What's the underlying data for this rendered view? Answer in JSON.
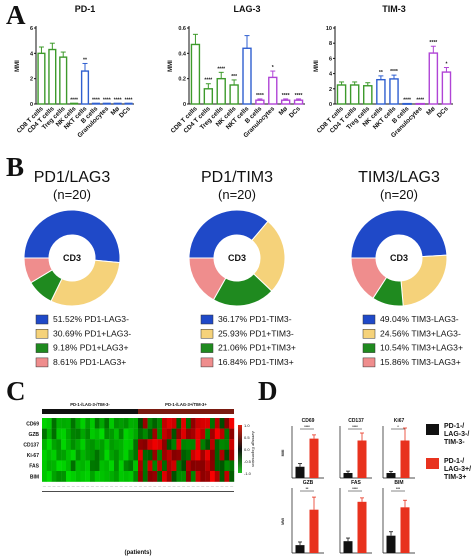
{
  "panel_labels": {
    "a": "A",
    "b": "B",
    "c": "C",
    "d": "D"
  },
  "colors": {
    "green": "#3d9a2b",
    "blue": "#2f5fd0",
    "purple": "#b044d6",
    "pie_blue": "#1f49c8",
    "pie_yellow": "#f5d27a",
    "pie_green": "#1f8a1f",
    "pie_pink": "#ef8d8d",
    "bar_black": "#111111",
    "bar_red": "#e8321e"
  },
  "chart_data": [
    {
      "type": "bar",
      "title": "PD-1",
      "ylabel": "MMI",
      "categories": [
        "CD8 T cells",
        "CD4 T cells",
        "Treg cells",
        "NK cells",
        "NKT cells",
        "B cells",
        "Granulocytes",
        "Mø",
        "DCs"
      ],
      "values": [
        4.0,
        4.3,
        3.7,
        0.05,
        2.6,
        0.05,
        0.05,
        0.05,
        0.05
      ],
      "errors": [
        0.5,
        0.5,
        0.4,
        0,
        0.6,
        0,
        0,
        0,
        0
      ],
      "significance": [
        "",
        "",
        "",
        "****",
        "**",
        "****",
        "****",
        "****",
        "****"
      ],
      "ylim": [
        0,
        6
      ],
      "yticks": [
        0,
        2,
        4,
        6
      ]
    },
    {
      "type": "bar",
      "title": "LAG-3",
      "ylabel": "MMI",
      "categories": [
        "CD8 T cells",
        "CD4 T cells",
        "Treg cells",
        "NK cells",
        "NKT cells",
        "B cells",
        "Granulocytes",
        "Mø",
        "DCs"
      ],
      "values": [
        0.47,
        0.12,
        0.2,
        0.15,
        0.44,
        0.03,
        0.21,
        0.03,
        0.03
      ],
      "errors": [
        0.08,
        0.04,
        0.05,
        0.04,
        0.1,
        0.01,
        0.05,
        0.01,
        0.01
      ],
      "significance": [
        "",
        "****",
        "****",
        "***",
        "",
        "****",
        "*",
        "****",
        "****"
      ],
      "ylim": [
        0,
        0.6
      ],
      "yticks": [
        0.0,
        0.2,
        0.4,
        0.6
      ]
    },
    {
      "type": "bar",
      "title": "TIM-3",
      "ylabel": "MMI",
      "categories": [
        "CD8 T cells",
        "CD4 T cells",
        "Treg cells",
        "NK cells",
        "NKT cells",
        "B cells",
        "Granulocytes",
        "Mø",
        "DCs"
      ],
      "values": [
        2.5,
        2.5,
        2.4,
        3.2,
        3.3,
        0.05,
        0.05,
        6.7,
        4.2
      ],
      "errors": [
        0.4,
        0.4,
        0.4,
        0.5,
        0.5,
        0,
        0,
        0.9,
        0.6
      ],
      "significance": [
        "",
        "",
        "",
        "**",
        "****",
        "****",
        "****",
        "****",
        "*"
      ],
      "ylim": [
        0,
        10
      ],
      "yticks": [
        0,
        2,
        4,
        6,
        8,
        10
      ]
    },
    {
      "type": "pie",
      "title": "PD1/LAG3",
      "subtitle": "(n=20)",
      "center_label": "CD3",
      "slices": [
        {
          "label": "PD1-LAG3-",
          "pct_text": "51.52%",
          "value": 51.52
        },
        {
          "label": "PD1+LAG3-",
          "pct_text": "30.69%",
          "value": 30.69
        },
        {
          "label": "PD1+LAG3+",
          "pct_text": "9.18%",
          "value": 9.18
        },
        {
          "label": "PD1-LAG3+",
          "pct_text": "8.61%",
          "value": 8.61
        }
      ]
    },
    {
      "type": "pie",
      "title": "PD1/TIM3",
      "subtitle": "(n=20)",
      "center_label": "CD3",
      "slices": [
        {
          "label": "PD1-TIM3-",
          "pct_text": "36.17%",
          "value": 36.17
        },
        {
          "label": "PD1+TIM3-",
          "pct_text": "25.93%",
          "value": 25.93
        },
        {
          "label": "PD1+TIM3+",
          "pct_text": "21.06%",
          "value": 21.06
        },
        {
          "label": "PD1-TIM3+",
          "pct_text": "16.84%",
          "value": 16.84
        }
      ]
    },
    {
      "type": "pie",
      "title": "TIM3/LAG3",
      "subtitle": "(n=20)",
      "center_label": "CD3",
      "slices": [
        {
          "label": "TIM3-LAG3-",
          "pct_text": "49.04%",
          "value": 49.04
        },
        {
          "label": "TIM3+LAG3-",
          "pct_text": "24.56%",
          "value": 24.56
        },
        {
          "label": "TIM3+LAG3+",
          "pct_text": "10.54%",
          "value": 10.54
        },
        {
          "label": "TIM3-LAG3+",
          "pct_text": "15.86%",
          "value": 15.86
        }
      ]
    },
    {
      "type": "heatmap",
      "group_labels": [
        "PD-1-/LAG-3-/TIM-3-",
        "PD-1-/LAG-3+/TIM-3+"
      ],
      "rows": [
        "CD69",
        "GZB",
        "CD137",
        "Ki-67",
        "FAS",
        "BIM"
      ],
      "n_columns_per_group": 20,
      "xlabel": "(patients)",
      "colorbar": {
        "title": "Average Expression",
        "ticks": [
          "1.0",
          "0.5",
          "0.0",
          "-0.5",
          "-1.0"
        ]
      }
    },
    {
      "type": "bar",
      "ylabel": "MMI",
      "legend": [
        {
          "label": "PD-1-/LAG-3-/TIM-3-",
          "color": "#111111"
        },
        {
          "label": "PD-1-/LAG-3+/TIM-3+",
          "color": "#e8321e"
        }
      ],
      "panels": [
        {
          "title": "CD69",
          "values": [
            1.8,
            6.3
          ],
          "errors": [
            0.5,
            0.6
          ],
          "significance": "****",
          "ylim": [
            0,
            8
          ]
        },
        {
          "title": "CD137",
          "values": [
            0.8,
            6.0
          ],
          "errors": [
            0.3,
            1.2
          ],
          "significance": "****",
          "ylim": [
            0,
            8
          ]
        },
        {
          "title": "Ki67",
          "values": [
            0.6,
            4.5
          ],
          "errors": [
            0.2,
            1.5
          ],
          "significance": "*",
          "ylim": [
            0,
            6
          ]
        },
        {
          "title": "GZB",
          "values": [
            1.0,
            5.5
          ],
          "errors": [
            0.4,
            1.6
          ],
          "significance": "**",
          "ylim": [
            0,
            8
          ]
        },
        {
          "title": "FAS",
          "values": [
            1.5,
            6.5
          ],
          "errors": [
            0.4,
            0.5
          ],
          "significance": "****",
          "ylim": [
            0,
            8
          ]
        },
        {
          "title": "BIM",
          "values": [
            2.2,
            5.8
          ],
          "errors": [
            0.5,
            0.9
          ],
          "significance": "***",
          "ylim": [
            0,
            8
          ]
        }
      ]
    }
  ]
}
